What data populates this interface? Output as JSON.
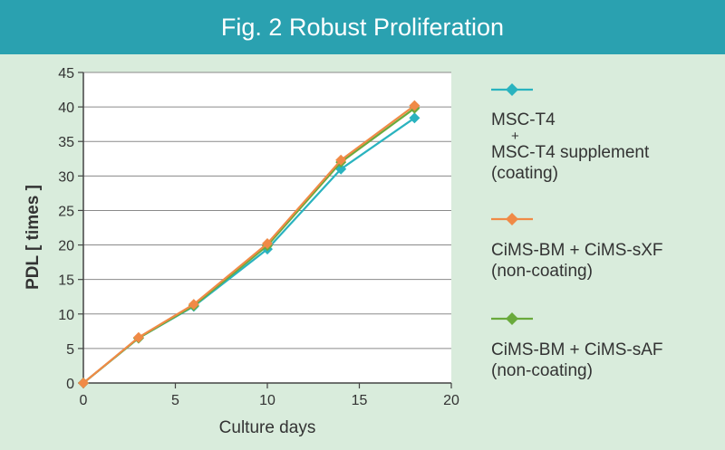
{
  "header": {
    "title": "Fig. 2 Robust Proliferation"
  },
  "chart_data": {
    "type": "line",
    "title": "Fig. 2 Robust Proliferation",
    "xlabel": "Culture days",
    "ylabel": "PDL [ times ]",
    "xlim": [
      0,
      20
    ],
    "ylim": [
      0,
      45
    ],
    "xticks": [
      0,
      5,
      10,
      15,
      20
    ],
    "yticks": [
      0,
      5,
      10,
      15,
      20,
      25,
      30,
      35,
      40,
      45
    ],
    "grid": "horizontal",
    "legend_position": "right",
    "series": [
      {
        "name": "MSC-T4 + MSC-T4 supplement (coating)",
        "color": "#2ab3bf",
        "marker": "diamond",
        "x": [
          0,
          3,
          6,
          10,
          14,
          18
        ],
        "y": [
          0,
          6.5,
          11.1,
          19.4,
          31.0,
          38.4
        ]
      },
      {
        "name": "CiMS-BM + CiMS-sXF (non-coating)",
        "color": "#f08a46",
        "marker": "diamond",
        "x": [
          0,
          3,
          6,
          10,
          14,
          18
        ],
        "y": [
          0,
          6.6,
          11.4,
          20.2,
          32.3,
          40.2
        ]
      },
      {
        "name": "CiMS-BM + CiMS-sAF (non-coating)",
        "color": "#6aaa3c",
        "marker": "diamond",
        "x": [
          0,
          3,
          6,
          10,
          14,
          18
        ],
        "y": [
          0,
          6.5,
          11.2,
          19.9,
          32.0,
          39.8
        ]
      }
    ]
  },
  "legend": [
    {
      "line1": "MSC-T4",
      "plus": "+",
      "line2": "MSC-T4 supplement",
      "line3": "(coating)"
    },
    {
      "line1": "CiMS-BM + CiMS-sXF",
      "line2": "(non-coating)"
    },
    {
      "line1": "CiMS-BM + CiMS-sAF",
      "line2": "(non-coating)"
    }
  ]
}
